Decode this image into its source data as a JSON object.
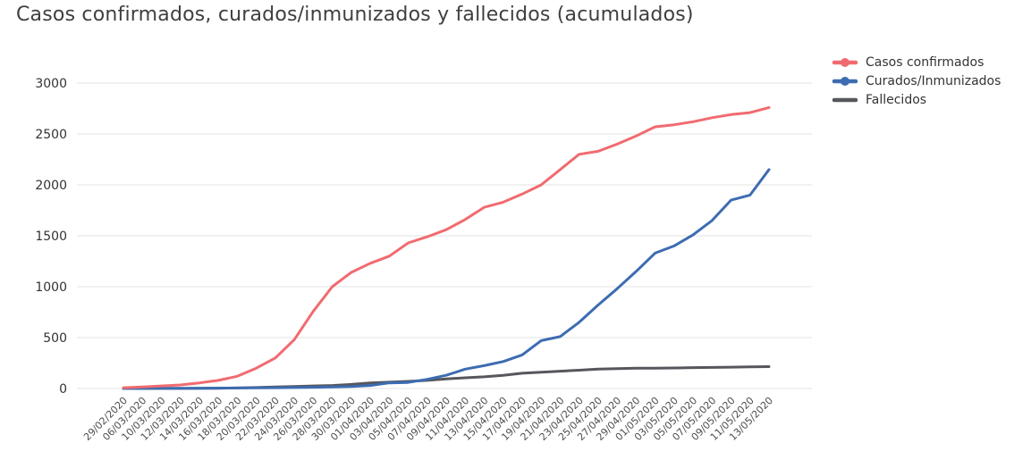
{
  "title": "Casos confirmados, curados/inmunizados y fallecidos (acumulados)",
  "colors": {
    "background": "#ffffff",
    "gridline": "#e3e3e3",
    "y_axis_text": "#333333",
    "x_axis_text": "#4d4d4d",
    "title_text": "#3f3f3f"
  },
  "chart_data": {
    "type": "line",
    "title": "Casos confirmados, curados/inmunizados y fallecidos (acumulados)",
    "xlabel": "",
    "ylabel": "",
    "ylim": [
      0,
      3000
    ],
    "yticks": [
      0,
      500,
      1000,
      1500,
      2000,
      2500,
      3000
    ],
    "grid": true,
    "legend_position": "top-right",
    "categories": [
      "29/02/2020",
      "06/03/2020",
      "10/03/2020",
      "12/03/2020",
      "14/03/2020",
      "16/03/2020",
      "18/03/2020",
      "20/03/2020",
      "22/03/2020",
      "24/03/2020",
      "26/03/2020",
      "28/03/2020",
      "30/03/2020",
      "01/04/2020",
      "03/04/2020",
      "05/04/2020",
      "07/04/2020",
      "09/04/2020",
      "11/04/2020",
      "13/04/2020",
      "15/04/2020",
      "17/04/2020",
      "19/04/2020",
      "21/04/2020",
      "23/04/2020",
      "25/04/2020",
      "27/04/2020",
      "29/04/2020",
      "01/05/2020",
      "03/05/2020",
      "05/05/2020",
      "07/05/2020",
      "09/05/2020",
      "11/05/2020",
      "13/05/2020"
    ],
    "series": [
      {
        "id": "confirmados",
        "name": "Casos confirmados",
        "color": "#f06b70",
        "marker": "line-dot",
        "values": [
          8,
          15,
          25,
          35,
          55,
          80,
          120,
          200,
          300,
          480,
          760,
          1000,
          1140,
          1230,
          1300,
          1430,
          1490,
          1560,
          1660,
          1780,
          1830,
          1910,
          2000,
          2150,
          2300,
          2330,
          2400,
          2480,
          2570,
          2590,
          2620,
          2660,
          2690,
          2710,
          2760
        ]
      },
      {
        "id": "curados",
        "name": "Curados/Inmunizados",
        "color": "#3d6cb1",
        "marker": "line-dot",
        "values": [
          0,
          0,
          2,
          2,
          3,
          4,
          5,
          6,
          8,
          10,
          12,
          15,
          20,
          30,
          55,
          60,
          90,
          130,
          190,
          225,
          265,
          330,
          470,
          510,
          650,
          820,
          980,
          1150,
          1330,
          1400,
          1510,
          1650,
          1850,
          1900,
          2150
        ]
      },
      {
        "id": "fallecidos",
        "name": "Fallecidos",
        "color": "#55575c",
        "marker": "line",
        "values": [
          0,
          0,
          1,
          1,
          2,
          3,
          5,
          10,
          15,
          20,
          25,
          30,
          40,
          55,
          62,
          70,
          80,
          95,
          105,
          115,
          130,
          150,
          160,
          170,
          180,
          190,
          195,
          200,
          200,
          202,
          205,
          207,
          210,
          212,
          215
        ]
      }
    ]
  }
}
